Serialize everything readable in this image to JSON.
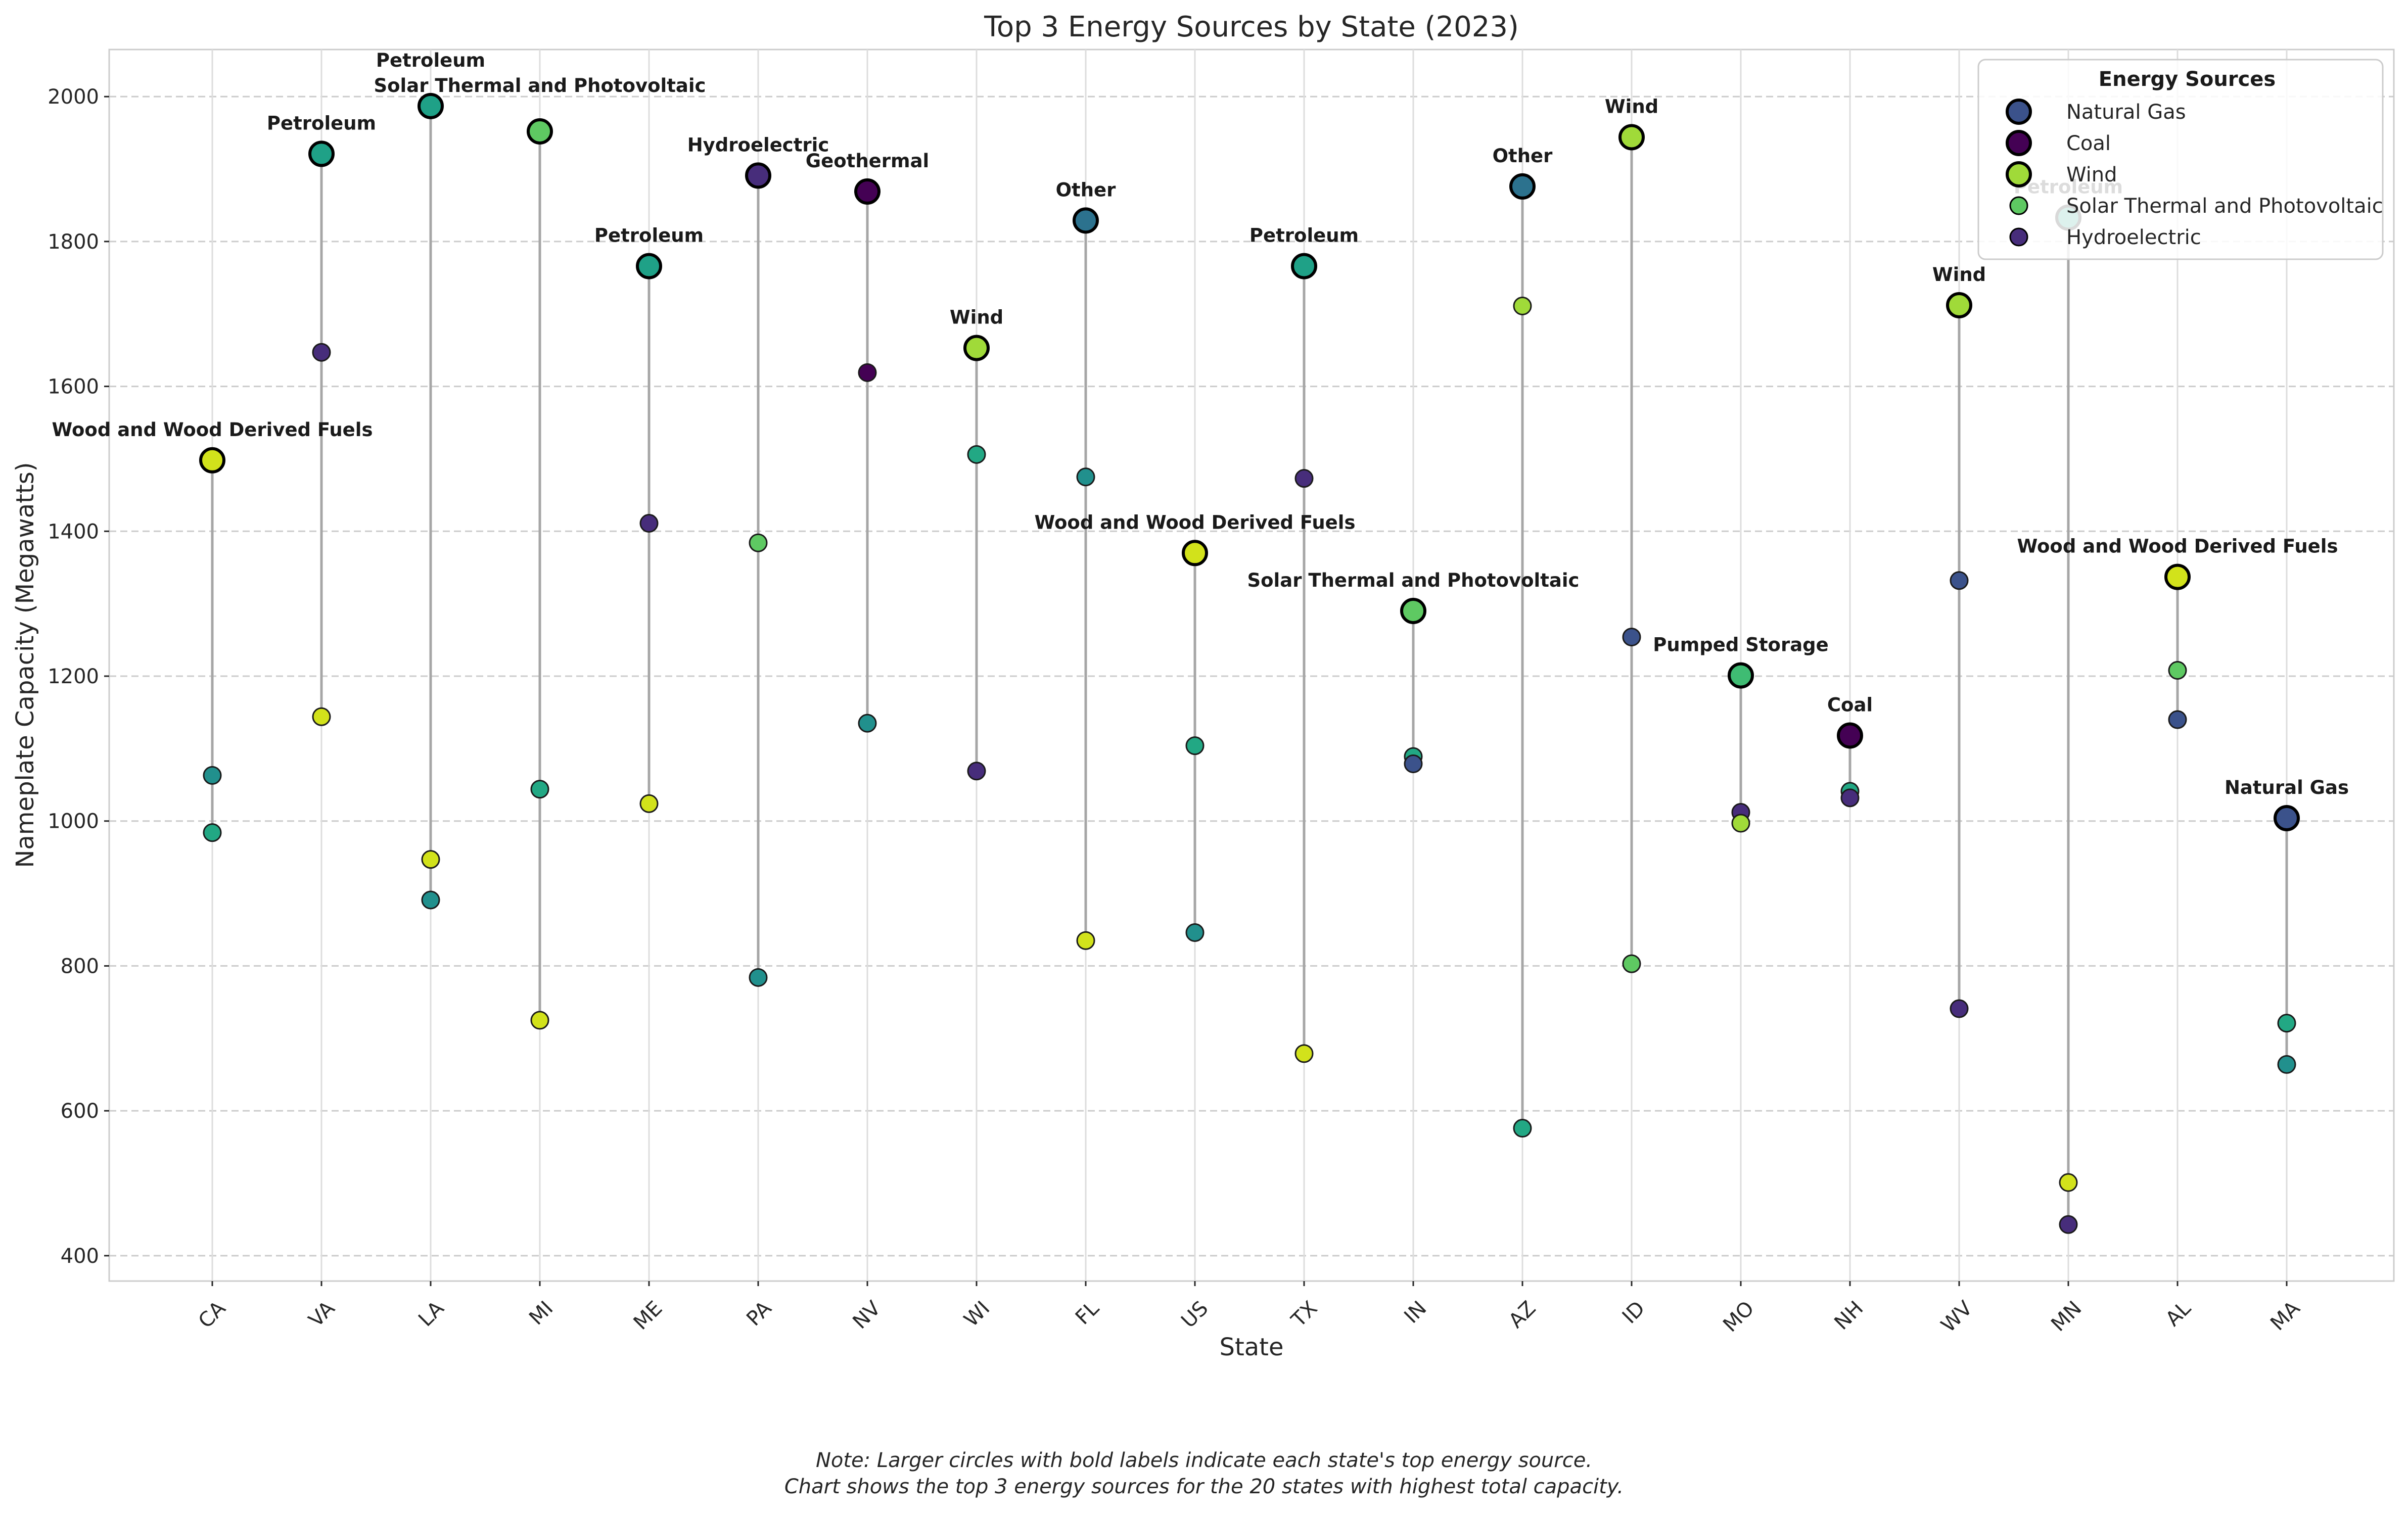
{
  "chart_data": {
    "type": "scatter",
    "title": "Top 3 Energy Sources by State (2023)",
    "xlabel": "State",
    "ylabel": "Nameplate Capacity (Megawatts)",
    "ylim": [
      365,
      2065
    ],
    "yticks": [
      400,
      600,
      800,
      1000,
      1200,
      1400,
      1600,
      1800,
      2000
    ],
    "grid": true,
    "legend_title": "Energy Sources",
    "legend_placement": "top-right",
    "legend": [
      {
        "label": "Natural Gas",
        "color": "#3b528b",
        "size": "large"
      },
      {
        "label": "Coal",
        "color": "#440154",
        "size": "large"
      },
      {
        "label": "Wind",
        "color": "#a0da39",
        "size": "large"
      },
      {
        "label": "Solar Thermal and Photovoltaic",
        "color": "#5ec962",
        "size": "small"
      },
      {
        "label": "Hydroelectric",
        "color": "#472d7b",
        "size": "small"
      }
    ],
    "states": [
      {
        "state": "CA",
        "top": {
          "source": "Wood and Wood Derived Fuels",
          "value": 1498,
          "color": "#d2e21b"
        },
        "others": [
          {
            "value": 1063,
            "color": "#21908d"
          },
          {
            "value": 984,
            "color": "#22a884"
          }
        ]
      },
      {
        "state": "VA",
        "top": {
          "source": "Petroleum",
          "value": 1921,
          "color": "#1fa187"
        },
        "others": [
          {
            "value": 1647,
            "color": "#472d7b"
          },
          {
            "value": 1144,
            "color": "#d2e21b"
          }
        ]
      },
      {
        "state": "LA",
        "top": {
          "source": "Petroleum",
          "value": 1987,
          "color": "#1fa187"
        },
        "others": [
          {
            "value": 947,
            "color": "#d2e21b"
          },
          {
            "value": 891,
            "color": "#21908d"
          }
        ]
      },
      {
        "state": "MI",
        "top": {
          "source": "Solar Thermal and Photovoltaic",
          "value": 1952,
          "color": "#5ec962"
        },
        "others": [
          {
            "value": 1044,
            "color": "#22a884"
          },
          {
            "value": 725,
            "color": "#d2e21b"
          }
        ]
      },
      {
        "state": "ME",
        "top": {
          "source": "Petroleum",
          "value": 1766,
          "color": "#1fa187"
        },
        "others": [
          {
            "value": 1411,
            "color": "#472d7b"
          },
          {
            "value": 1024,
            "color": "#d2e21b"
          }
        ]
      },
      {
        "state": "PA",
        "top": {
          "source": "Hydroelectric",
          "value": 1891,
          "color": "#472d7b"
        },
        "others": [
          {
            "value": 1384,
            "color": "#5ec962"
          },
          {
            "value": 784,
            "color": "#21908d"
          }
        ]
      },
      {
        "state": "NV",
        "top": {
          "source": "Geothermal",
          "value": 1869,
          "color": "#440154"
        },
        "others": [
          {
            "value": 1619,
            "color": "#440154"
          },
          {
            "value": 1135,
            "color": "#21908d"
          }
        ]
      },
      {
        "state": "WI",
        "top": {
          "source": "Wind",
          "value": 1653,
          "color": "#a0da39"
        },
        "others": [
          {
            "value": 1506,
            "color": "#22a884"
          },
          {
            "value": 1069,
            "color": "#472d7b"
          }
        ]
      },
      {
        "state": "FL",
        "top": {
          "source": "Other",
          "value": 1829,
          "color": "#2c728e"
        },
        "others": [
          {
            "value": 1475,
            "color": "#21908d"
          },
          {
            "value": 835,
            "color": "#d2e21b"
          }
        ]
      },
      {
        "state": "US",
        "top": {
          "source": "Wood and Wood Derived Fuels",
          "value": 1370,
          "color": "#d2e21b"
        },
        "others": [
          {
            "value": 1104,
            "color": "#22a884"
          },
          {
            "value": 846,
            "color": "#21908d"
          }
        ]
      },
      {
        "state": "TX",
        "top": {
          "source": "Petroleum",
          "value": 1766,
          "color": "#1fa187"
        },
        "others": [
          {
            "value": 1473,
            "color": "#472d7b"
          },
          {
            "value": 679,
            "color": "#d2e21b"
          }
        ]
      },
      {
        "state": "IN",
        "top": {
          "source": "Solar Thermal and Photovoltaic",
          "value": 1290,
          "color": "#5ec962"
        },
        "others": [
          {
            "value": 1089,
            "color": "#22a884"
          },
          {
            "value": 1079,
            "color": "#3b528b"
          }
        ]
      },
      {
        "state": "AZ",
        "top": {
          "source": "Other",
          "value": 1876,
          "color": "#2c728e"
        },
        "others": [
          {
            "value": 1711,
            "color": "#a0da39"
          },
          {
            "value": 576,
            "color": "#22a884"
          }
        ]
      },
      {
        "state": "ID",
        "top": {
          "source": "Wind",
          "value": 1944,
          "color": "#a0da39"
        },
        "others": [
          {
            "value": 1254,
            "color": "#3b528b"
          },
          {
            "value": 803,
            "color": "#5ec962"
          }
        ]
      },
      {
        "state": "MO",
        "top": {
          "source": "Pumped Storage",
          "value": 1201,
          "color": "#3fbc73"
        },
        "others": [
          {
            "value": 1012,
            "color": "#472d7b"
          },
          {
            "value": 997,
            "color": "#a0da39"
          }
        ]
      },
      {
        "state": "NH",
        "top": {
          "source": "Coal",
          "value": 1118,
          "color": "#440154"
        },
        "others": [
          {
            "value": 1041,
            "color": "#22a884"
          },
          {
            "value": 1032,
            "color": "#472d7b"
          }
        ]
      },
      {
        "state": "WV",
        "top": {
          "source": "Wind",
          "value": 1712,
          "color": "#a0da39"
        },
        "others": [
          {
            "value": 1332,
            "color": "#3b528b"
          },
          {
            "value": 741,
            "color": "#472d7b"
          }
        ]
      },
      {
        "state": "MN",
        "top": {
          "source": "Petroleum",
          "value": 1833,
          "color": "#1fa187"
        },
        "others": [
          {
            "value": 501,
            "color": "#d2e21b"
          },
          {
            "value": 443,
            "color": "#472d7b"
          }
        ]
      },
      {
        "state": "AL",
        "top": {
          "source": "Wood and Wood Derived Fuels",
          "value": 1337,
          "color": "#d2e21b"
        },
        "others": [
          {
            "value": 1208,
            "color": "#5ec962"
          },
          {
            "value": 1140,
            "color": "#3b528b"
          }
        ]
      },
      {
        "state": "MA",
        "top": {
          "source": "Natural Gas",
          "value": 1004,
          "color": "#3b528b"
        },
        "others": [
          {
            "value": 721,
            "color": "#22a884"
          },
          {
            "value": 664,
            "color": "#21908d"
          }
        ]
      }
    ],
    "note_lines": [
      "Note: Larger circles with bold labels indicate each state's top energy source.",
      "Chart shows the top 3 energy sources for the 20 states with highest total capacity."
    ]
  }
}
